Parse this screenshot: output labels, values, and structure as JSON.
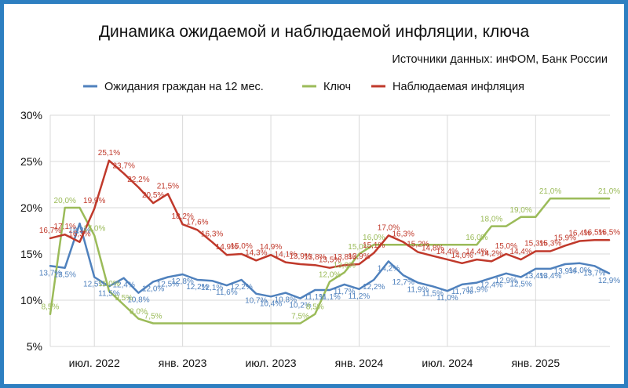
{
  "chart_data": {
    "type": "line",
    "title": "Динамика ожидаемой и наблюдаемой инфляции, ключа",
    "source_note": "Источники данных: инФОМ, Банк России",
    "ylim": [
      5,
      30
    ],
    "y_ticks": [
      "5%",
      "10%",
      "15%",
      "20%",
      "25%",
      "30%"
    ],
    "x_tick_labels": [
      "июл. 2022",
      "янв. 2023",
      "июл. 2023",
      "янв. 2024",
      "июл. 2024",
      "янв. 2025"
    ],
    "grid": true,
    "legend_position": "top",
    "series": [
      {
        "name": "Ожидания граждан на 12 мес.",
        "color": "#4f81bd",
        "values": [
          13.7,
          13.5,
          18.3,
          12.5,
          11.5,
          12.4,
          10.8,
          12.0,
          12.5,
          12.8,
          12.2,
          12.1,
          11.6,
          12.2,
          10.7,
          10.4,
          10.8,
          10.2,
          11.1,
          11.1,
          11.7,
          11.2,
          12.2,
          14.2,
          12.7,
          11.9,
          11.5,
          11.0,
          11.7,
          11.9,
          12.4,
          12.9,
          12.5,
          13.4,
          13.4,
          13.9,
          14.0,
          13.7,
          12.9
        ],
        "labels": [
          "13,7%",
          "13,5%",
          "18,3%",
          "12,5%",
          "11,5%",
          "12,4%",
          "10,8%",
          "12,0%",
          "12,5%",
          "12,8%",
          "12,2%",
          "12,1%",
          "11,6%",
          "12,2%",
          "10,7%",
          "10,4%",
          "10,8%",
          "10,2%",
          "11,1%",
          "11,1%",
          "11,7%",
          "11,2%",
          "12,2%",
          "14,2%",
          "12,7%",
          "11,9%",
          "11,5%",
          "11,0%",
          "11,7%",
          "11,9%",
          "12,4%",
          "12,9%",
          "12,5%",
          "13,4%",
          "13,4%",
          "13,9%",
          "14,0%",
          "13,7%",
          "12,9%"
        ]
      },
      {
        "name": "Ключ",
        "color": "#9bbb59",
        "values": [
          8.5,
          20.0,
          20.0,
          17.0,
          11.0,
          9.5,
          8.0,
          7.5,
          7.5,
          7.5,
          7.5,
          7.5,
          7.5,
          7.5,
          7.5,
          7.5,
          7.5,
          7.5,
          8.5,
          12.0,
          13.0,
          15.0,
          16.0,
          16.0,
          16.0,
          16.0,
          16.0,
          16.0,
          16.0,
          16.0,
          18.0,
          18.0,
          19.0,
          19.0,
          21.0,
          21.0,
          21.0,
          21.0,
          21.0
        ],
        "labels": [
          "8,5%",
          "20,0%",
          "",
          "17,0%",
          "11,0%",
          "9,5%",
          "8,0%",
          "7,5%",
          "",
          "",
          "",
          "",
          "",
          "",
          "",
          "",
          "",
          "7,5%",
          "8,5%",
          "12,0%",
          "13,0%",
          "15,0%",
          "16,0%",
          "",
          "",
          "",
          "",
          "",
          "",
          "16,0%",
          "18,0%",
          "",
          "19,0%",
          "",
          "21,0%",
          "",
          "",
          "",
          "21,0%"
        ]
      },
      {
        "name": "Наблюдаемая инфляция",
        "color": "#c0392b",
        "values": [
          16.7,
          17.1,
          16.3,
          19.9,
          25.1,
          23.7,
          22.2,
          20.5,
          21.5,
          18.2,
          17.6,
          16.3,
          14.9,
          15.0,
          14.3,
          14.9,
          14.1,
          13.9,
          13.8,
          13.5,
          13.8,
          13.9,
          15.1,
          17.0,
          16.3,
          15.2,
          14.8,
          14.4,
          14.0,
          14.4,
          14.2,
          15.0,
          14.4,
          15.3,
          15.3,
          15.9,
          16.4,
          16.5,
          16.5
        ],
        "labels": [
          "16,7%",
          "17,1%",
          "16,3%",
          "19,9%",
          "25,1%",
          "23,7%",
          "22,2%",
          "20,5%",
          "21,5%",
          "18,2%",
          "17,6%",
          "16,3%",
          "14,9%",
          "15,0%",
          "14,3%",
          "14,9%",
          "14,1%",
          "13,9%",
          "13,8%",
          "13,5%",
          "13,8%",
          "13,9%",
          "15,1%",
          "17,0%",
          "16,3%",
          "15,2%",
          "14,8%",
          "14,4%",
          "14,0%",
          "14,4%",
          "14,2%",
          "15,0%",
          "14,4%",
          "15,3%",
          "15,3%",
          "15,9%",
          "16,4%",
          "16,5%",
          "16,5%"
        ]
      }
    ]
  }
}
